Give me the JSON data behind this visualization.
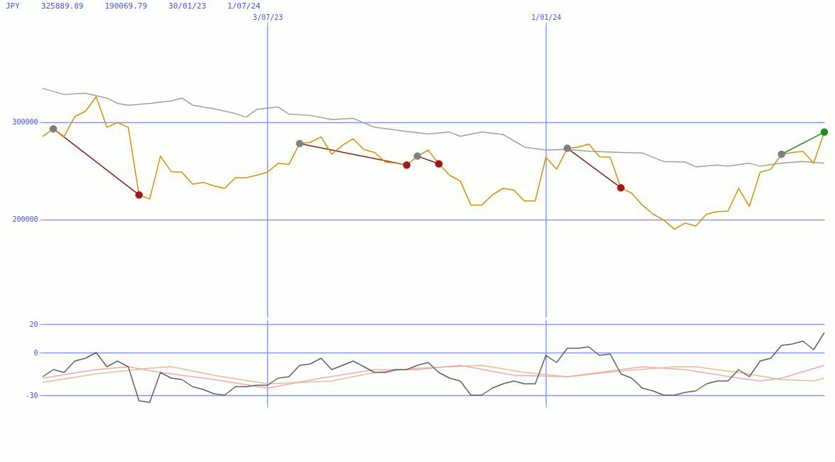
{
  "chart_data": [
    {
      "type": "line",
      "annotations": [
        "JPY",
        "325889.89",
        "190069.79",
        "30/01/23",
        "1/07/24"
      ],
      "x": [
        "2023-02-06",
        "2023-02-13",
        "2023-02-20",
        "2023-02-27",
        "2023-03-06",
        "2023-03-13",
        "2023-03-20",
        "2023-03-27",
        "2023-04-03",
        "2023-04-10",
        "2023-04-17",
        "2023-04-24",
        "2023-05-01",
        "2023-05-08",
        "2023-05-15",
        "2023-05-22",
        "2023-05-29",
        "2023-06-05",
        "2023-06-12",
        "2023-06-19",
        "2023-06-26",
        "2023-07-03",
        "2023-07-10",
        "2023-07-17",
        "2023-07-24",
        "2023-07-31",
        "2023-08-07",
        "2023-08-14",
        "2023-08-21",
        "2023-08-28",
        "2023-09-04",
        "2023-09-11",
        "2023-09-18",
        "2023-09-25",
        "2023-10-02",
        "2023-10-09",
        "2023-10-16",
        "2023-10-23",
        "2023-10-30",
        "2023-11-06",
        "2023-11-13",
        "2023-11-20",
        "2023-11-27",
        "2023-12-04",
        "2023-12-11",
        "2023-12-18",
        "2023-12-25",
        "2024-01-01",
        "2024-01-08",
        "2024-01-15",
        "2024-01-22",
        "2024-01-29",
        "2024-02-05",
        "2024-02-12",
        "2024-02-19",
        "2024-02-26",
        "2024-03-04",
        "2024-03-11",
        "2024-03-18",
        "2024-03-25",
        "2024-04-01",
        "2024-04-08",
        "2024-04-15",
        "2024-04-22",
        "2024-04-29",
        "2024-05-06",
        "2024-05-13",
        "2024-05-20",
        "2024-05-27",
        "2024-06-03",
        "2024-06-10",
        "2024-06-17",
        "2024-06-24",
        "2024-07-01"
      ],
      "series": [
        {
          "color": "#d4900a",
          "values": [
            285000,
            293000,
            285000,
            305500,
            311000,
            325900,
            294500,
            299400,
            294500,
            225200,
            220900,
            265000,
            249100,
            248500,
            236200,
            238000,
            234400,
            231900,
            242900,
            242900,
            245400,
            248500,
            257700,
            256400,
            277900,
            279100,
            284700,
            266900,
            276100,
            282800,
            271800,
            268700,
            258900,
            257700,
            255800,
            265000,
            271200,
            257100,
            245400,
            239300,
            214700,
            214700,
            225200,
            231900,
            230100,
            219000,
            219000,
            263800,
            251500,
            273000,
            274200,
            277300,
            264400,
            263800,
            232500,
            227000,
            214700,
            205500,
            199400,
            190100,
            196300,
            193300,
            205500,
            208000,
            208600,
            231900,
            213500,
            248500,
            251500,
            266900,
            268700,
            269900,
            257700,
            289600
          ]
        },
        {
          "color": "#a0a0a0",
          "x": [
            "2023-02-06",
            "2023-02-20",
            "2023-03-06",
            "2023-03-20",
            "2023-03-27",
            "2023-04-03",
            "2023-04-17",
            "2023-05-01",
            "2023-05-08",
            "2023-05-15",
            "2023-05-29",
            "2023-06-12",
            "2023-06-19",
            "2023-06-26",
            "2023-07-10",
            "2023-07-17",
            "2023-07-31",
            "2023-08-14",
            "2023-08-28",
            "2023-09-11",
            "2023-10-02",
            "2023-10-16",
            "2023-10-30",
            "2023-11-06",
            "2023-11-20",
            "2023-12-04",
            "2023-12-18",
            "2024-01-01",
            "2024-01-15",
            "2024-01-29",
            "2024-02-19",
            "2024-03-04",
            "2024-03-18",
            "2024-04-01",
            "2024-04-08",
            "2024-04-22",
            "2024-04-29",
            "2024-05-13",
            "2024-05-20",
            "2024-06-03",
            "2024-06-17",
            "2024-07-01"
          ],
          "values": [
            334400,
            328200,
            329400,
            324500,
            319000,
            317200,
            319000,
            321500,
            324500,
            317200,
            313500,
            308600,
            304900,
            312900,
            315300,
            308000,
            306700,
            302500,
            303700,
            294500,
            290200,
            287700,
            289600,
            285300,
            289600,
            287100,
            274200,
            271200,
            271800,
            269900,
            268700,
            268100,
            259500,
            258900,
            254000,
            255800,
            254600,
            257700,
            254600,
            257700,
            259500,
            257700
          ]
        },
        {
          "color": "#8b1a1a",
          "marker": "circle",
          "x": [
            "2023-02-13",
            "2023-04-10"
          ],
          "values": [
            293000,
            225200
          ],
          "colors": [
            "#808080",
            "#a01818"
          ]
        },
        {
          "color": "#8b1a1a",
          "marker": "circle",
          "x": [
            "2023-07-24",
            "2023-10-02"
          ],
          "values": [
            277900,
            255800
          ],
          "colors": [
            "#808080",
            "#a01818"
          ]
        },
        {
          "color": "#8b1a1a",
          "marker": "circle",
          "x": [
            "2023-10-09",
            "2023-10-23"
          ],
          "values": [
            265000,
            257100
          ],
          "colors": [
            "#808080",
            "#a01818"
          ]
        },
        {
          "color": "#8b1a1a",
          "marker": "circle",
          "x": [
            "2024-01-15",
            "2024-02-19"
          ],
          "values": [
            273000,
            232500
          ],
          "colors": [
            "#808080",
            "#a01818"
          ]
        },
        {
          "color": "#228b22",
          "marker": "circle",
          "x": [
            "2024-06-03",
            "2024-07-01"
          ],
          "values": [
            266900,
            289600
          ],
          "colors": [
            "#808080",
            "#228b22"
          ]
        }
      ],
      "xlim": [
        "2023-02-06",
        "2024-07-01"
      ],
      "xticks": [
        {
          "value": "2023-07-03",
          "label": "3/07/23"
        },
        {
          "value": "2024-01-01",
          "label": "1/01/24"
        }
      ],
      "ylim": [
        100000,
        398800
      ],
      "yticks": [
        200000,
        300000
      ],
      "grid": true
    },
    {
      "type": "line",
      "tick_labels": "y",
      "x": [
        "2023-02-06",
        "2023-02-13",
        "2023-02-20",
        "2023-02-27",
        "2023-03-06",
        "2023-03-13",
        "2023-03-20",
        "2023-03-27",
        "2023-04-03",
        "2023-04-10",
        "2023-04-17",
        "2023-04-24",
        "2023-05-01",
        "2023-05-08",
        "2023-05-15",
        "2023-05-22",
        "2023-05-29",
        "2023-06-05",
        "2023-06-12",
        "2023-06-19",
        "2023-06-26",
        "2023-07-03",
        "2023-07-10",
        "2023-07-17",
        "2023-07-24",
        "2023-07-31",
        "2023-08-07",
        "2023-08-14",
        "2023-08-21",
        "2023-08-28",
        "2023-09-04",
        "2023-09-11",
        "2023-09-18",
        "2023-09-25",
        "2023-10-02",
        "2023-10-09",
        "2023-10-16",
        "2023-10-23",
        "2023-10-30",
        "2023-11-06",
        "2023-11-13",
        "2023-11-20",
        "2023-11-27",
        "2023-12-04",
        "2023-12-11",
        "2023-12-18",
        "2023-12-25",
        "2024-01-01",
        "2024-01-08",
        "2024-01-15",
        "2024-01-22",
        "2024-01-29",
        "2024-02-05",
        "2024-02-12",
        "2024-02-19",
        "2024-02-26",
        "2024-03-04",
        "2024-03-11",
        "2024-03-18",
        "2024-03-25",
        "2024-04-01",
        "2024-04-08",
        "2024-04-15",
        "2024-04-22",
        "2024-04-29",
        "2024-05-06",
        "2024-05-13",
        "2024-05-20",
        "2024-05-27",
        "2024-06-03",
        "2024-06-10",
        "2024-06-17",
        "2024-06-24",
        "2024-07-01"
      ],
      "series": [
        {
          "color": "#606060",
          "values": [
            -17,
            -12,
            -14,
            -6,
            -4,
            0,
            -10,
            -6,
            -10,
            -34,
            -35,
            -14,
            -18,
            -19,
            -24,
            -26,
            -29,
            -30,
            -24,
            -24,
            -23,
            -23,
            -18,
            -17,
            -9,
            -8,
            -4,
            -12,
            -9,
            -6,
            -10,
            -14,
            -14,
            -12,
            -12,
            -9,
            -7,
            -14,
            -18,
            -20,
            -30,
            -30,
            -25,
            -22,
            -20,
            -22,
            -22,
            -2,
            -7,
            3,
            3,
            4,
            -2,
            -1,
            -15,
            -18,
            -25,
            -27,
            -30,
            -30,
            -28,
            -27,
            -22,
            -20,
            -20,
            -12,
            -17,
            -6,
            -4,
            5,
            6,
            8,
            2,
            14
          ]
        },
        {
          "color": "#f4a6b8",
          "x": [
            "2023-02-06",
            "2023-03-13",
            "2023-04-03",
            "2023-04-24",
            "2023-05-29",
            "2023-07-03",
            "2023-08-07",
            "2023-09-11",
            "2023-10-09",
            "2023-11-06",
            "2023-12-11",
            "2024-01-15",
            "2024-02-19",
            "2024-03-04",
            "2024-04-01",
            "2024-05-06",
            "2024-05-20",
            "2024-06-03",
            "2024-07-01"
          ],
          "values": [
            -18,
            -12,
            -10,
            -14,
            -19,
            -25,
            -18,
            -12,
            -12,
            -9,
            -16,
            -17,
            -12,
            -10,
            -12,
            -18,
            -20,
            -18,
            -9
          ]
        },
        {
          "color": "#e0c090",
          "x": [
            "2023-02-06",
            "2023-03-13",
            "2023-04-17",
            "2023-05-01",
            "2023-05-29",
            "2023-07-03",
            "2023-08-14",
            "2023-09-11",
            "2023-10-09",
            "2023-11-20",
            "2023-12-18",
            "2024-01-15",
            "2024-02-19",
            "2024-03-25",
            "2024-04-08",
            "2024-05-06",
            "2024-06-03",
            "2024-06-24",
            "2024-07-01"
          ],
          "values": [
            -21,
            -15,
            -11,
            -10,
            -16,
            -22,
            -20,
            -14,
            -11,
            -9,
            -14,
            -17,
            -13,
            -10,
            -10,
            -14,
            -19,
            -20,
            -18
          ]
        }
      ],
      "xlim": [
        "2023-02-06",
        "2024-07-01"
      ],
      "xticks": [
        {
          "value": "2023-07-03",
          "label": null
        },
        {
          "value": "2024-01-01",
          "label": null
        }
      ],
      "ylim": [
        -36,
        23
      ],
      "yticks": [
        20,
        0,
        -30
      ],
      "grid": true
    }
  ]
}
